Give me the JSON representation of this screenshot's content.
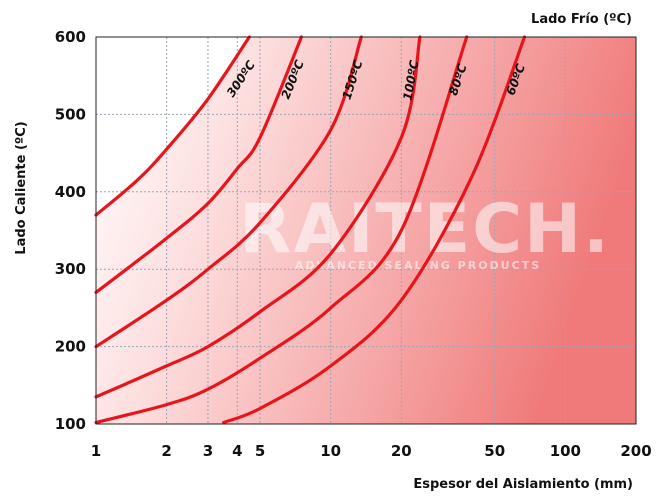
{
  "chart_data": {
    "type": "line",
    "title": "",
    "x_scale": "log",
    "xlabel": "Espesor del Aislamiento (mm)",
    "ylabel": "Lado Caliente (ºC)",
    "legend_title": "Lado Frío (ºC)",
    "xlim": [
      1,
      200
    ],
    "ylim": [
      100,
      600
    ],
    "x_ticks": [
      1,
      2,
      3,
      4,
      5,
      10,
      20,
      50,
      100,
      200
    ],
    "y_ticks": [
      100,
      200,
      300,
      400,
      500,
      600
    ],
    "grid": true,
    "watermark": {
      "main": "RAITECH.",
      "sub": "ADVANCED SEALING PRODUCTS"
    },
    "series": [
      {
        "name": "300ºC",
        "x": [
          1,
          1.5,
          2,
          3,
          4.5
        ],
        "y": [
          370,
          415,
          455,
          520,
          600
        ]
      },
      {
        "name": "200ºC",
        "x": [
          1,
          2,
          3,
          4,
          5,
          7.5
        ],
        "y": [
          270,
          340,
          385,
          430,
          470,
          600
        ]
      },
      {
        "name": "150ºC",
        "x": [
          1,
          2,
          3,
          5,
          10,
          13.5
        ],
        "y": [
          200,
          260,
          300,
          360,
          480,
          600
        ]
      },
      {
        "name": "100ºC",
        "x": [
          1,
          2,
          3,
          5,
          10,
          20,
          24
        ],
        "y": [
          135,
          175,
          200,
          245,
          320,
          470,
          600
        ]
      },
      {
        "name": "80ºC",
        "x": [
          1,
          2,
          3,
          5,
          10,
          20,
          38
        ],
        "y": [
          102,
          125,
          145,
          185,
          250,
          350,
          600
        ]
      },
      {
        "name": "60ºC",
        "x": [
          3.5,
          5,
          10,
          20,
          40,
          67
        ],
        "y": [
          102,
          120,
          175,
          260,
          420,
          600
        ]
      }
    ]
  }
}
